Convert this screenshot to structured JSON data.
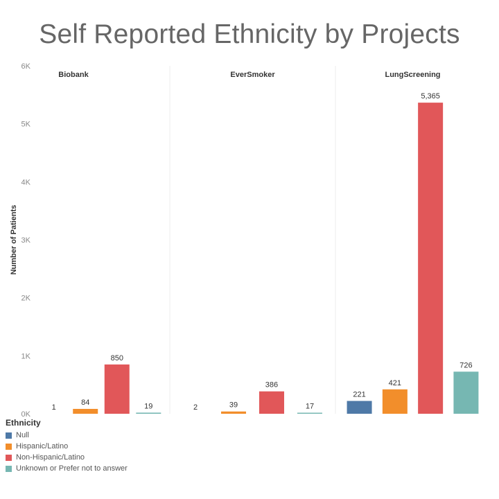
{
  "chart_data": {
    "type": "bar",
    "title": "Self Reported Ethnicity by Projects",
    "ylabel": "Number of Patients",
    "ylim": [
      0,
      6000
    ],
    "yticks": [
      {
        "value": 0,
        "label": "0K"
      },
      {
        "value": 1000,
        "label": "1K"
      },
      {
        "value": 2000,
        "label": "2K"
      },
      {
        "value": 3000,
        "label": "3K"
      },
      {
        "value": 4000,
        "label": "4K"
      },
      {
        "value": 5000,
        "label": "5K"
      },
      {
        "value": 6000,
        "label": "6K"
      }
    ],
    "panels": [
      "Biobank",
      "EverSmoker",
      "LungScreening"
    ],
    "legend_title": "Ethnicity",
    "series": [
      {
        "name": "Null",
        "color": "#4e79a7",
        "values": [
          null,
          null,
          221
        ],
        "labels": [
          "",
          "",
          "221"
        ]
      },
      {
        "name": "Hispanic/Latino",
        "color": "#f28e2b",
        "values": [
          84,
          39,
          421
        ],
        "labels": [
          "84",
          "39",
          "421"
        ]
      },
      {
        "name": "Non-Hispanic/Latino",
        "color": "#e15759",
        "values": [
          850,
          386,
          5365
        ],
        "labels": [
          "850",
          "386",
          "5,365"
        ]
      },
      {
        "name": "Unknown or Prefer not to answer",
        "color": "#76b7b2",
        "values": [
          19,
          17,
          726
        ],
        "labels": [
          "19",
          "17",
          "726"
        ]
      }
    ],
    "extra_labels": [
      {
        "panel": 0,
        "series": 0,
        "text": "1"
      },
      {
        "panel": 1,
        "series": 0,
        "text": "2"
      }
    ]
  }
}
